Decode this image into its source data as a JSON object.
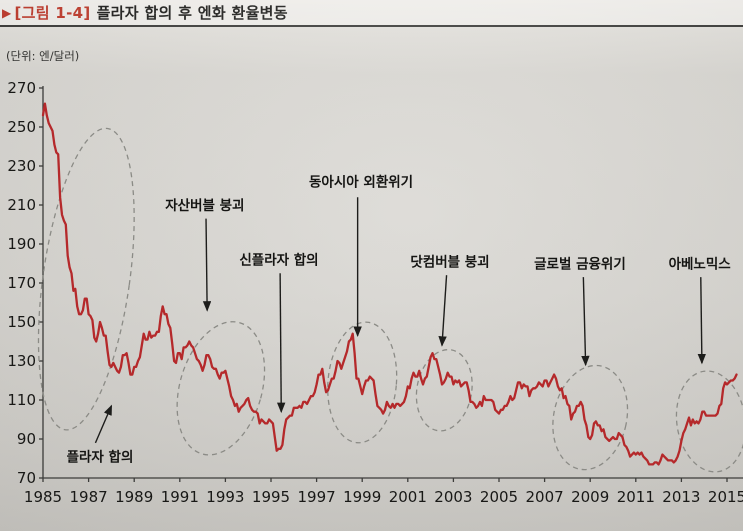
{
  "header": {
    "marker": "▶",
    "title_prefix": "[그림 1-4]",
    "title": "플라자 합의 후 엔화 환율변동"
  },
  "chart": {
    "unit_label": "(단위: 엔/달러)"
  },
  "chart_data": {
    "type": "line",
    "title": "플라자 합의 후 엔화 환율변동",
    "ylabel": "엔/달러",
    "ylim": [
      70,
      270
    ],
    "yticks": [
      270,
      250,
      230,
      210,
      190,
      170,
      150,
      130,
      110,
      90,
      70
    ],
    "xticks": [
      1985,
      1987,
      1989,
      1991,
      1993,
      1995,
      1997,
      1999,
      2001,
      2003,
      2005,
      2007,
      2009,
      2011,
      2013,
      2015
    ],
    "grid": false,
    "legend": false,
    "line_color": "#b5292b",
    "series": [
      {
        "name": "엔/달러 환율",
        "start_year": 1985,
        "interval_months": 1,
        "values": [
          256,
          262,
          256,
          252,
          250,
          248,
          241,
          237,
          236,
          214,
          205,
          202,
          200,
          184,
          178,
          175,
          166,
          167,
          158,
          154,
          154,
          156,
          162,
          162,
          154,
          153,
          151,
          142,
          140,
          144,
          150,
          147,
          143,
          143,
          135,
          128,
          127,
          129,
          127,
          125,
          124,
          127,
          133,
          133,
          134,
          129,
          123,
          123,
          127,
          127,
          130,
          132,
          138,
          144,
          141,
          141,
          145,
          142,
          143,
          143,
          145,
          145,
          153,
          158,
          154,
          154,
          149,
          147,
          139,
          130,
          129,
          134,
          134,
          131,
          137,
          137,
          138,
          140,
          138,
          137,
          134,
          131,
          130,
          128,
          125,
          128,
          133,
          133,
          131,
          127,
          126,
          126,
          123,
          121,
          124,
          124,
          125,
          121,
          117,
          112,
          110,
          107,
          108,
          104,
          106,
          107,
          108,
          110,
          111,
          107,
          105,
          104,
          104,
          103,
          98,
          100,
          99,
          98,
          98,
          100,
          99,
          98,
          91,
          84,
          85,
          85,
          87,
          95,
          100,
          101,
          102,
          102,
          106,
          106,
          106,
          107,
          106,
          109,
          109,
          108,
          110,
          112,
          112,
          114,
          118,
          123,
          123,
          126,
          119,
          114,
          115,
          118,
          121,
          121,
          125,
          130,
          129,
          126,
          129,
          132,
          135,
          140,
          141,
          144,
          134,
          121,
          121,
          117,
          113,
          117,
          120,
          120,
          122,
          121,
          120,
          113,
          107,
          106,
          105,
          103,
          105,
          109,
          107,
          106,
          108,
          106,
          108,
          108,
          107,
          108,
          109,
          112,
          117,
          116,
          121,
          124,
          122,
          122,
          125,
          121,
          118,
          121,
          122,
          127,
          132,
          134,
          131,
          131,
          127,
          123,
          118,
          119,
          121,
          124,
          122,
          122,
          118,
          120,
          119,
          120,
          117,
          118,
          119,
          119,
          115,
          109,
          109,
          108,
          106,
          107,
          109,
          107,
          112,
          110,
          110,
          110,
          110,
          109,
          105,
          104,
          103,
          105,
          105,
          107,
          107,
          109,
          112,
          110,
          111,
          115,
          119,
          119,
          116,
          118,
          117,
          117,
          112,
          115,
          116,
          116,
          117,
          119,
          118,
          117,
          120,
          120,
          117,
          119,
          121,
          123,
          121,
          117,
          115,
          116,
          111,
          112,
          108,
          107,
          100,
          103,
          104,
          107,
          107,
          109,
          107,
          100,
          97,
          91,
          90,
          92,
          98,
          99,
          97,
          97,
          94,
          95,
          91,
          90,
          89,
          90,
          91,
          90,
          90,
          93,
          92,
          91,
          87,
          86,
          84,
          81,
          82,
          83,
          82,
          83,
          82,
          83,
          81,
          80,
          79,
          77,
          77,
          77,
          78,
          78,
          77,
          79,
          82,
          81,
          80,
          79,
          79,
          79,
          78,
          79,
          81,
          84,
          89,
          93,
          95,
          98,
          101,
          97,
          100,
          98,
          99,
          98,
          100,
          104,
          104,
          102,
          102,
          102,
          102,
          102,
          102,
          103,
          107,
          108,
          116,
          119,
          118,
          119,
          120,
          120,
          121,
          123
        ]
      }
    ],
    "annotations": [
      {
        "label": "플라자 합의",
        "label_x": 1987.5,
        "label_y": 81,
        "arrow_from": [
          1987.3,
          88
        ],
        "arrow_to": [
          1988.0,
          107
        ]
      },
      {
        "label": "자산버블 붕괴",
        "label_x": 1992.1,
        "label_y": 210,
        "arrow_from": [
          1992.15,
          203
        ],
        "arrow_to": [
          1992.2,
          156
        ]
      },
      {
        "label": "신플라자 합의",
        "label_x": 1995.35,
        "label_y": 182,
        "arrow_from": [
          1995.4,
          175
        ],
        "arrow_to": [
          1995.45,
          104
        ]
      },
      {
        "label": "동아시아 외환위기",
        "label_x": 1998.95,
        "label_y": 222,
        "arrow_from": [
          1998.8,
          214
        ],
        "arrow_to": [
          1998.8,
          143
        ]
      },
      {
        "label": "닷컴버블 붕괴",
        "label_x": 2002.85,
        "label_y": 181,
        "arrow_from": [
          2002.7,
          174
        ],
        "arrow_to": [
          2002.5,
          138
        ]
      },
      {
        "label": "글로벌 금융위기",
        "label_x": 2008.55,
        "label_y": 180,
        "arrow_from": [
          2008.7,
          173
        ],
        "arrow_to": [
          2008.8,
          128
        ]
      },
      {
        "label": "아베노믹스",
        "label_x": 2013.8,
        "label_y": 180,
        "arrow_from": [
          2013.85,
          173
        ],
        "arrow_to": [
          2013.9,
          129
        ]
      }
    ],
    "highlight_ellipses": [
      {
        "cx": 1986.9,
        "cy": 172,
        "rx_years": 1.9,
        "ry_units": 78,
        "rotate": 8
      },
      {
        "cx": 1992.8,
        "cy": 116,
        "rx_years": 1.8,
        "ry_units": 35,
        "rotate": 16
      },
      {
        "cx": 1999.0,
        "cy": 119,
        "rx_years": 1.5,
        "ry_units": 31,
        "rotate": 5
      },
      {
        "cx": 2002.6,
        "cy": 115,
        "rx_years": 1.2,
        "ry_units": 21,
        "rotate": 10
      },
      {
        "cx": 2009.0,
        "cy": 101,
        "rx_years": 1.6,
        "ry_units": 27,
        "rotate": 12
      },
      {
        "cx": 2014.3,
        "cy": 99,
        "rx_years": 1.5,
        "ry_units": 26,
        "rotate": -8
      }
    ]
  }
}
